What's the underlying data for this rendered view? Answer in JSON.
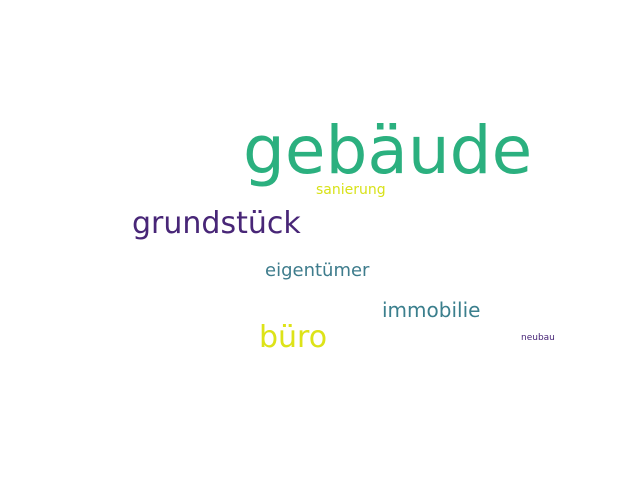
{
  "words": [
    {
      "text": "gebäude",
      "color": "#2bb07f"
    },
    {
      "text": "sanierung",
      "color": "#d8e219"
    },
    {
      "text": "grundstück",
      "color": "#482677"
    },
    {
      "text": "eigentümer",
      "color": "#3e7c8c"
    },
    {
      "text": "immobilie",
      "color": "#3b7f8d"
    },
    {
      "text": "büro",
      "color": "#dde318"
    },
    {
      "text": "neubau",
      "color": "#482677"
    }
  ]
}
